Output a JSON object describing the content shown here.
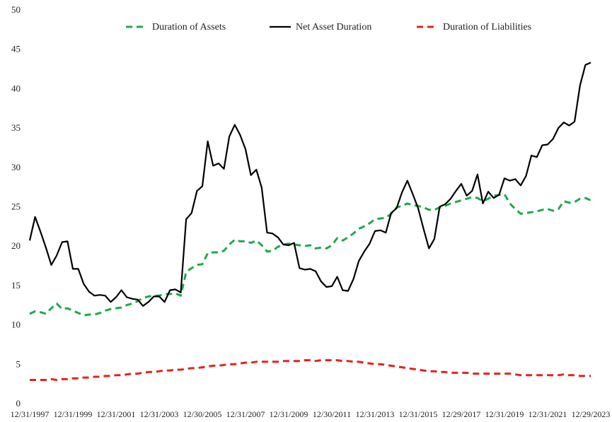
{
  "chart_data": {
    "type": "line",
    "categories": [
      "12/31/1997",
      null,
      null,
      null,
      null,
      null,
      null,
      null,
      "12/31/1999",
      null,
      null,
      null,
      null,
      null,
      null,
      null,
      "12/31/2001",
      null,
      null,
      null,
      null,
      null,
      null,
      null,
      "12/31/2003",
      null,
      null,
      null,
      null,
      null,
      null,
      null,
      "12/30/2005",
      null,
      null,
      null,
      null,
      null,
      null,
      null,
      "12/31/2007",
      null,
      null,
      null,
      null,
      null,
      null,
      null,
      "12/31/2009",
      null,
      null,
      null,
      null,
      null,
      null,
      null,
      "12/30/2011",
      null,
      null,
      null,
      null,
      null,
      null,
      null,
      "12/31/2013",
      null,
      null,
      null,
      null,
      null,
      null,
      null,
      "12/31/2015",
      null,
      null,
      null,
      null,
      null,
      null,
      null,
      "12/29/2017",
      null,
      null,
      null,
      null,
      null,
      null,
      null,
      "12/31/2019",
      null,
      null,
      null,
      null,
      null,
      null,
      null,
      "12/31/2021",
      null,
      null,
      null,
      null,
      null,
      null,
      null,
      "12/29/2023"
    ],
    "series": [
      {
        "name": "Duration of Assets",
        "color": "#1fa84a",
        "dashed": true,
        "values": [
          11.5,
          11.8,
          11.7,
          11.5,
          12.2,
          12.8,
          12.1,
          12.2,
          11.9,
          11.6,
          11.3,
          11.4,
          11.4,
          11.6,
          11.9,
          12.1,
          12.2,
          12.3,
          12.6,
          12.8,
          13.1,
          13.5,
          13.7,
          13.8,
          13.8,
          14.0,
          14.0,
          14.1,
          13.8,
          16.8,
          17.3,
          17.7,
          17.8,
          19.2,
          19.3,
          19.3,
          19.5,
          20.3,
          20.9,
          20.7,
          20.7,
          20.5,
          20.8,
          20.2,
          19.4,
          19.5,
          20.0,
          20.3,
          20.4,
          20.3,
          20.2,
          20.1,
          20.2,
          19.8,
          19.9,
          19.8,
          20.2,
          21.1,
          20.8,
          21.2,
          21.7,
          22.3,
          22.6,
          23.0,
          23.5,
          23.6,
          23.7,
          24.2,
          25.0,
          25.2,
          25.5,
          25.3,
          25.2,
          25.0,
          24.7,
          24.7,
          25.0,
          25.2,
          25.5,
          25.7,
          25.9,
          26.1,
          26.3,
          26.2,
          25.8,
          26.1,
          26.5,
          26.6,
          26.7,
          25.5,
          24.8,
          24.2,
          24.3,
          24.4,
          24.5,
          24.7,
          24.8,
          24.6,
          24.8,
          25.8,
          25.6,
          25.7,
          26.1,
          26.2,
          25.9
        ]
      },
      {
        "name": "Net Asset Duration",
        "color": "#000000",
        "dashed": false,
        "values": [
          20.8,
          23.8,
          21.9,
          19.9,
          17.7,
          18.9,
          20.6,
          20.7,
          17.2,
          17.2,
          15.3,
          14.3,
          13.8,
          13.9,
          13.8,
          13.0,
          13.6,
          14.5,
          13.6,
          13.4,
          13.3,
          12.5,
          13.0,
          13.7,
          13.7,
          13.0,
          14.5,
          14.6,
          14.2,
          23.5,
          24.3,
          27.1,
          27.7,
          33.4,
          30.3,
          30.6,
          29.9,
          34.0,
          35.5,
          34.2,
          32.4,
          29.1,
          29.8,
          27.5,
          21.8,
          21.7,
          21.2,
          20.3,
          20.2,
          20.5,
          17.3,
          17.1,
          17.2,
          16.9,
          15.6,
          14.9,
          15.0,
          16.2,
          14.5,
          14.4,
          15.9,
          18.2,
          19.4,
          20.4,
          22.0,
          22.1,
          21.8,
          24.3,
          24.9,
          26.9,
          28.4,
          26.7,
          24.9,
          22.3,
          19.8,
          21.0,
          25.1,
          25.4,
          26.1,
          27.1,
          28.0,
          26.5,
          27.1,
          29.2,
          25.5,
          27.0,
          26.2,
          26.6,
          28.7,
          28.4,
          28.6,
          27.8,
          29.0,
          31.6,
          31.4,
          32.9,
          33.0,
          33.7,
          35.1,
          35.8,
          35.4,
          35.9,
          40.5,
          43.1,
          43.4
        ]
      },
      {
        "name": "Duration of Liabilities",
        "color": "#e8201c",
        "dashed": true,
        "values": [
          3.1,
          3.1,
          3.1,
          3.1,
          3.2,
          3.1,
          3.2,
          3.2,
          3.3,
          3.3,
          3.4,
          3.4,
          3.5,
          3.5,
          3.6,
          3.6,
          3.7,
          3.7,
          3.8,
          3.9,
          3.9,
          4.0,
          4.1,
          4.1,
          4.2,
          4.3,
          4.3,
          4.4,
          4.4,
          4.5,
          4.6,
          4.6,
          4.7,
          4.8,
          4.9,
          4.9,
          5.0,
          5.1,
          5.1,
          5.2,
          5.3,
          5.3,
          5.4,
          5.4,
          5.4,
          5.4,
          5.4,
          5.5,
          5.5,
          5.5,
          5.5,
          5.6,
          5.6,
          5.5,
          5.6,
          5.6,
          5.6,
          5.6,
          5.5,
          5.5,
          5.4,
          5.4,
          5.3,
          5.2,
          5.1,
          5.1,
          5.0,
          4.9,
          4.8,
          4.7,
          4.6,
          4.5,
          4.4,
          4.3,
          4.2,
          4.2,
          4.1,
          4.1,
          4.0,
          4.0,
          4.0,
          4.0,
          3.9,
          3.9,
          3.9,
          3.9,
          3.9,
          3.9,
          3.9,
          3.9,
          3.8,
          3.7,
          3.7,
          3.7,
          3.7,
          3.7,
          3.7,
          3.7,
          3.7,
          3.8,
          3.7,
          3.7,
          3.6,
          3.6,
          3.6
        ]
      }
    ],
    "ylim": [
      0,
      50
    ],
    "yticks": [
      0,
      5,
      10,
      15,
      20,
      25,
      30,
      35,
      40,
      45,
      50
    ],
    "grid": false,
    "legend": "top"
  }
}
